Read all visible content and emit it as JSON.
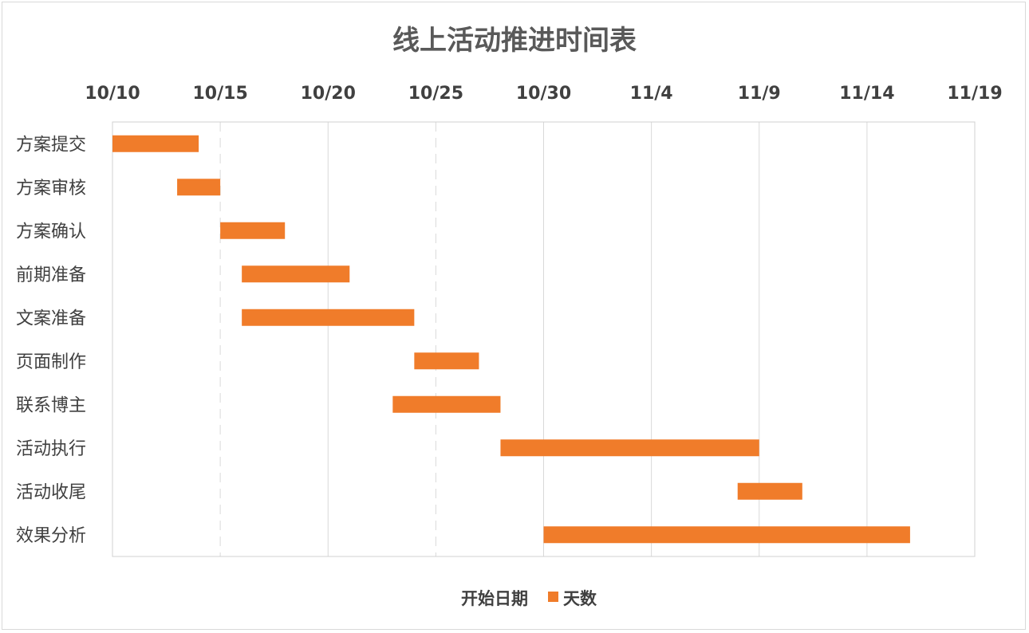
{
  "chart_data": {
    "type": "bar",
    "orientation": "horizontal-gantt",
    "title": "线上活动推进时间表",
    "x_axis": {
      "position": "top",
      "tick_labels": [
        "10/10",
        "10/15",
        "10/20",
        "10/25",
        "10/30",
        "11/4",
        "11/9",
        "11/14",
        "11/19"
      ],
      "range": [
        "10/10",
        "11/19"
      ]
    },
    "categories": [
      "方案提交",
      "方案审核",
      "方案确认",
      "前期准备",
      "文案准备",
      "页面制作",
      "联系博主",
      "活动执行",
      "活动收尾",
      "效果分析"
    ],
    "series": [
      {
        "name": "开始日期",
        "color": "none",
        "values": [
          "10/10",
          "10/13",
          "10/15",
          "10/16",
          "10/16",
          "10/24",
          "10/23",
          "10/28",
          "11/8",
          "10/30"
        ]
      },
      {
        "name": "天数",
        "color": "#f07c2a",
        "values": [
          4,
          2,
          3,
          5,
          8,
          3,
          5,
          12,
          3,
          17
        ]
      }
    ],
    "legend": {
      "position": "bottom",
      "entries": [
        "开始日期",
        "天数"
      ]
    },
    "grid": true
  }
}
